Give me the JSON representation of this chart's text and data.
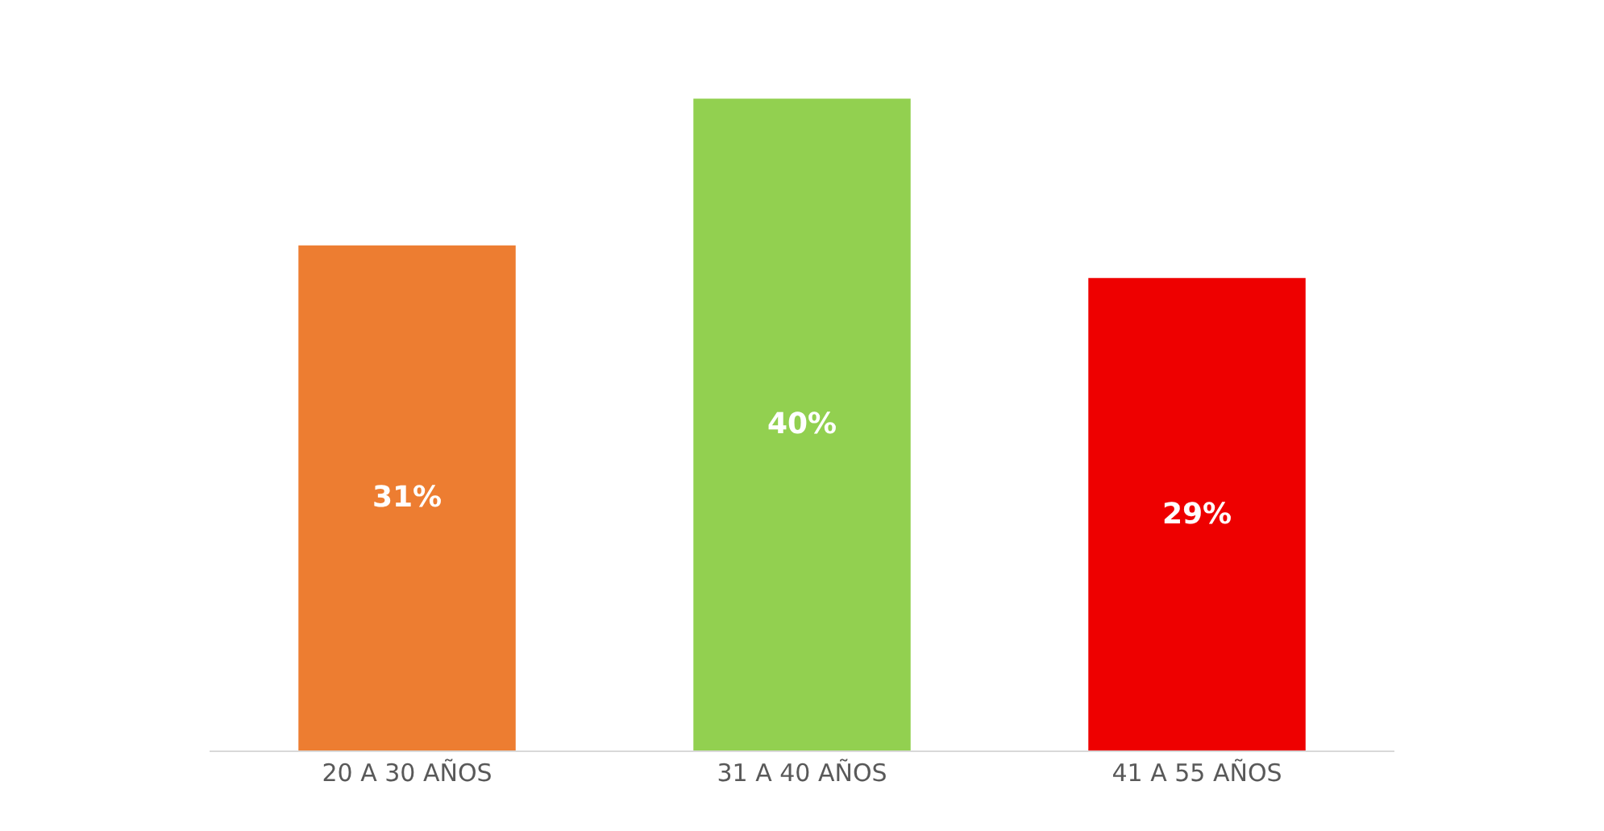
{
  "chart_data": {
    "type": "bar",
    "categories": [
      "20 A 30 AÑOS",
      "31 A 40 AÑOS",
      "41 A 55 AÑOS"
    ],
    "values": [
      31,
      40,
      29
    ],
    "colors": [
      "#ed7d31",
      "#92d050",
      "#ee0000"
    ],
    "value_labels": [
      "31%",
      "40%",
      "29%"
    ]
  }
}
